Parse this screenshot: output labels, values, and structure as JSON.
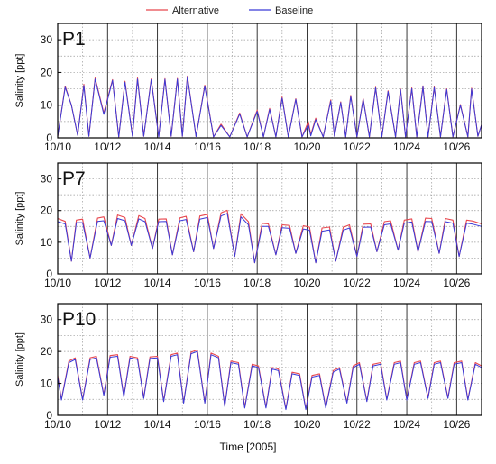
{
  "legend": {
    "alternative": "Alternative",
    "baseline": "Baseline"
  },
  "xlabel": "Time [2005]",
  "colors": {
    "alternative": "#e8474e",
    "baseline": "#3a3ad8",
    "grid": "#9a9a9a",
    "frame": "#000000"
  },
  "chart_data": [
    {
      "type": "line",
      "label": "P1",
      "ylabel": "Salinity [ppt]",
      "xlim": [
        10,
        27
      ],
      "ylim": [
        0,
        35
      ],
      "x_ticks": [
        "10/10",
        "10/12",
        "10/14",
        "10/16",
        "10/18",
        "10/20",
        "10/22",
        "10/24",
        "10/26"
      ],
      "y_ticks": [
        0,
        10,
        20,
        30
      ],
      "grid": true,
      "x_unit": "day of October 2005",
      "series": [
        {
          "name": "Alternative",
          "x": [
            10.0,
            10.3,
            10.55,
            10.8,
            11.05,
            11.25,
            11.5,
            11.85,
            12.2,
            12.45,
            12.7,
            13.0,
            13.2,
            13.45,
            13.75,
            14.05,
            14.3,
            14.55,
            14.8,
            15.0,
            15.2,
            15.55,
            15.9,
            16.25,
            16.55,
            16.9,
            17.3,
            17.6,
            18.0,
            18.25,
            18.5,
            18.75,
            19.0,
            19.25,
            19.55,
            19.8,
            20.05,
            20.15,
            20.35,
            20.65,
            20.95,
            21.1,
            21.35,
            21.55,
            21.75,
            22.0,
            22.25,
            22.5,
            22.75,
            23.0,
            23.25,
            23.55,
            23.75,
            23.95,
            24.2,
            24.4,
            24.65,
            24.85,
            25.1,
            25.35,
            25.6,
            25.85,
            26.15,
            26.45,
            26.6,
            26.85,
            27.0
          ],
          "y": [
            0.5,
            15.8,
            10.0,
            0.8,
            16.4,
            0.5,
            18.3,
            7.6,
            17.8,
            0.3,
            17.3,
            0.6,
            18.3,
            0.5,
            18.0,
            0.4,
            18.1,
            0.5,
            18.2,
            0.5,
            18.9,
            0.4,
            16.1,
            0.3,
            4.2,
            0.3,
            7.6,
            0.3,
            8.5,
            0.3,
            9.0,
            0.3,
            12.5,
            0.3,
            12.0,
            0.3,
            5.0,
            1.0,
            6.0,
            0.3,
            11.6,
            0.5,
            11.0,
            0.3,
            13.0,
            0.3,
            12.0,
            0.3,
            15.5,
            0.3,
            14.4,
            0.3,
            15.0,
            0.3,
            15.3,
            0.3,
            15.9,
            0.3,
            15.6,
            0.3,
            15.0,
            0.3,
            10.2,
            0.3,
            15.2,
            0.5,
            4.0
          ]
        },
        {
          "name": "Baseline",
          "x": [
            10.0,
            10.3,
            10.55,
            10.8,
            11.05,
            11.25,
            11.5,
            11.85,
            12.2,
            12.45,
            12.7,
            13.0,
            13.2,
            13.45,
            13.75,
            14.05,
            14.3,
            14.55,
            14.8,
            15.0,
            15.2,
            15.55,
            15.9,
            16.25,
            16.55,
            16.9,
            17.3,
            17.6,
            18.0,
            18.25,
            18.5,
            18.75,
            19.0,
            19.25,
            19.55,
            19.8,
            20.05,
            20.15,
            20.35,
            20.65,
            20.95,
            21.1,
            21.35,
            21.55,
            21.75,
            22.0,
            22.25,
            22.5,
            22.75,
            23.0,
            23.25,
            23.55,
            23.75,
            23.95,
            24.2,
            24.4,
            24.65,
            24.85,
            25.1,
            25.35,
            25.6,
            25.85,
            26.15,
            26.45,
            26.6,
            26.85,
            27.0
          ],
          "y": [
            0.5,
            15.5,
            10.0,
            0.8,
            16.0,
            0.5,
            18.0,
            7.2,
            17.6,
            0.3,
            17.0,
            0.5,
            18.0,
            0.5,
            17.8,
            0.3,
            17.9,
            0.5,
            18.0,
            0.5,
            18.7,
            0.4,
            15.8,
            0.3,
            3.8,
            0.3,
            7.3,
            0.3,
            8.1,
            0.3,
            8.7,
            0.3,
            12.2,
            0.3,
            11.8,
            0.3,
            4.0,
            0.6,
            5.6,
            0.3,
            11.3,
            0.5,
            10.8,
            0.3,
            12.7,
            0.3,
            11.8,
            0.3,
            15.3,
            0.3,
            14.2,
            0.3,
            14.8,
            0.3,
            15.1,
            0.3,
            15.6,
            0.3,
            15.4,
            0.3,
            14.8,
            0.3,
            10.0,
            0.3,
            15.0,
            0.5,
            4.0
          ]
        }
      ]
    },
    {
      "type": "line",
      "label": "P7",
      "ylabel": "Salinity [ppt]",
      "xlim": [
        10,
        27
      ],
      "ylim": [
        0,
        35
      ],
      "x_ticks": [
        "10/10",
        "10/12",
        "10/14",
        "10/16",
        "10/18",
        "10/20",
        "10/22",
        "10/24",
        "10/26"
      ],
      "y_ticks": [
        0,
        10,
        20,
        30
      ],
      "grid": true,
      "x_unit": "day of October 2005",
      "series": [
        {
          "name": "Alternative",
          "x": [
            10.0,
            10.3,
            10.55,
            10.75,
            11.0,
            11.3,
            11.6,
            11.85,
            12.15,
            12.4,
            12.7,
            12.95,
            13.25,
            13.5,
            13.8,
            14.05,
            14.35,
            14.6,
            14.9,
            15.15,
            15.45,
            15.7,
            16.0,
            16.25,
            16.55,
            16.8,
            17.1,
            17.35,
            17.65,
            17.9,
            18.2,
            18.45,
            18.75,
            19.0,
            19.3,
            19.55,
            19.85,
            20.1,
            20.35,
            20.6,
            20.9,
            21.15,
            21.45,
            21.7,
            22.0,
            22.25,
            22.55,
            22.8,
            23.1,
            23.35,
            23.65,
            23.9,
            24.2,
            24.45,
            24.75,
            25.0,
            25.3,
            25.55,
            25.85,
            26.1,
            26.4,
            26.65,
            27.0
          ],
          "y": [
            17.5,
            16.6,
            4.0,
            17.0,
            17.3,
            5.0,
            17.6,
            18.0,
            9.0,
            18.6,
            17.8,
            9.0,
            18.4,
            17.5,
            8.0,
            17.3,
            17.4,
            6.0,
            17.7,
            18.2,
            7.0,
            18.3,
            18.8,
            8.0,
            19.3,
            20.1,
            5.5,
            19.0,
            16.5,
            3.5,
            16.0,
            15.8,
            6.0,
            15.5,
            15.3,
            6.5,
            15.2,
            14.8,
            3.5,
            14.5,
            14.8,
            4.0,
            14.7,
            15.5,
            5.5,
            15.7,
            15.8,
            7.0,
            16.5,
            16.8,
            7.5,
            17.0,
            17.4,
            7.0,
            17.6,
            17.5,
            6.5,
            17.5,
            17.0,
            5.5,
            17.0,
            16.7,
            15.8
          ]
        },
        {
          "name": "Baseline",
          "x": [
            10.0,
            10.3,
            10.55,
            10.75,
            11.0,
            11.3,
            11.6,
            11.85,
            12.15,
            12.4,
            12.7,
            12.95,
            13.25,
            13.5,
            13.8,
            14.05,
            14.35,
            14.6,
            14.9,
            15.15,
            15.45,
            15.7,
            16.0,
            16.25,
            16.55,
            16.8,
            17.1,
            17.35,
            17.65,
            17.9,
            18.2,
            18.45,
            18.75,
            19.0,
            19.3,
            19.55,
            19.85,
            20.1,
            20.35,
            20.6,
            20.9,
            21.15,
            21.45,
            21.7,
            22.0,
            22.25,
            22.55,
            22.8,
            23.1,
            23.35,
            23.65,
            23.9,
            24.2,
            24.45,
            24.75,
            25.0,
            25.3,
            25.55,
            25.85,
            26.1,
            26.4,
            26.65,
            27.0
          ],
          "y": [
            16.5,
            15.8,
            4.0,
            16.2,
            16.2,
            5.0,
            16.6,
            16.8,
            9.0,
            17.5,
            16.8,
            9.0,
            17.4,
            16.5,
            8.0,
            16.5,
            16.6,
            6.0,
            16.8,
            17.2,
            7.0,
            17.3,
            17.8,
            8.0,
            18.3,
            19.1,
            5.5,
            18.0,
            15.5,
            3.5,
            15.0,
            15.0,
            6.0,
            14.6,
            14.4,
            6.5,
            14.2,
            13.8,
            3.5,
            13.5,
            13.9,
            4.0,
            13.8,
            14.5,
            5.5,
            14.7,
            14.8,
            7.0,
            15.5,
            15.8,
            7.5,
            16.0,
            16.4,
            7.0,
            16.6,
            16.5,
            6.5,
            16.5,
            16.0,
            5.5,
            16.0,
            15.7,
            15.0
          ]
        }
      ]
    },
    {
      "type": "line",
      "label": "P10",
      "ylabel": "Salinity [ppt]",
      "xlim": [
        10,
        27
      ],
      "ylim": [
        0,
        35
      ],
      "x_ticks": [
        "10/10",
        "10/12",
        "10/14",
        "10/16",
        "10/18",
        "10/20",
        "10/22",
        "10/24",
        "10/26"
      ],
      "y_ticks": [
        0,
        10,
        20,
        30
      ],
      "grid": true,
      "x_unit": "day of October 2005",
      "series": [
        {
          "name": "Alternative",
          "x": [
            10.0,
            10.15,
            10.45,
            10.7,
            11.0,
            11.3,
            11.55,
            11.85,
            12.1,
            12.4,
            12.65,
            12.9,
            13.2,
            13.45,
            13.7,
            14.0,
            14.25,
            14.55,
            14.8,
            15.05,
            15.35,
            15.6,
            15.9,
            16.15,
            16.45,
            16.7,
            16.95,
            17.25,
            17.5,
            17.8,
            18.05,
            18.35,
            18.6,
            18.85,
            19.15,
            19.4,
            19.7,
            19.95,
            20.2,
            20.5,
            20.75,
            21.05,
            21.3,
            21.6,
            21.85,
            22.1,
            22.4,
            22.65,
            22.95,
            23.2,
            23.5,
            23.75,
            24.0,
            24.3,
            24.55,
            24.85,
            25.1,
            25.35,
            25.65,
            25.9,
            26.2,
            26.45,
            26.75,
            27.0
          ],
          "y": [
            12.5,
            5.0,
            17.0,
            18.0,
            5.0,
            18.0,
            18.5,
            6.5,
            18.7,
            19.0,
            6.0,
            18.5,
            18.0,
            5.5,
            18.3,
            18.5,
            4.5,
            19.0,
            19.5,
            4.0,
            19.8,
            20.5,
            4.0,
            19.5,
            18.5,
            3.0,
            17.0,
            16.5,
            2.5,
            16.0,
            15.5,
            2.5,
            15.0,
            14.5,
            2.0,
            13.5,
            13.0,
            2.0,
            12.5,
            13.0,
            2.5,
            14.0,
            15.0,
            4.0,
            15.5,
            16.5,
            4.5,
            16.0,
            16.5,
            5.0,
            16.5,
            17.0,
            5.0,
            16.5,
            17.0,
            5.5,
            16.5,
            17.0,
            5.5,
            16.5,
            17.0,
            5.0,
            16.5,
            15.5
          ]
        },
        {
          "name": "Baseline",
          "x": [
            10.0,
            10.15,
            10.45,
            10.7,
            11.0,
            11.3,
            11.55,
            11.85,
            12.1,
            12.4,
            12.65,
            12.9,
            13.2,
            13.45,
            13.7,
            14.0,
            14.25,
            14.55,
            14.8,
            15.05,
            15.35,
            15.6,
            15.9,
            16.15,
            16.45,
            16.7,
            16.95,
            17.25,
            17.5,
            17.8,
            18.05,
            18.35,
            18.6,
            18.85,
            19.15,
            19.4,
            19.7,
            19.95,
            20.2,
            20.5,
            20.75,
            21.05,
            21.3,
            21.6,
            21.85,
            22.1,
            22.4,
            22.65,
            22.95,
            23.2,
            23.5,
            23.75,
            24.0,
            24.3,
            24.55,
            24.85,
            25.1,
            25.35,
            25.65,
            25.9,
            26.2,
            26.45,
            26.75,
            27.0
          ],
          "y": [
            12.0,
            4.8,
            16.5,
            17.5,
            4.8,
            17.5,
            18.0,
            6.2,
            18.2,
            18.5,
            5.8,
            18.0,
            17.5,
            5.3,
            17.8,
            18.0,
            4.3,
            18.5,
            19.0,
            3.8,
            19.3,
            20.0,
            3.8,
            19.0,
            18.0,
            2.8,
            16.5,
            16.0,
            2.3,
            15.5,
            15.0,
            2.3,
            14.5,
            14.0,
            1.8,
            13.0,
            12.5,
            1.8,
            12.0,
            12.5,
            2.3,
            13.5,
            14.5,
            3.8,
            15.0,
            16.0,
            4.3,
            15.5,
            16.0,
            4.8,
            16.0,
            16.5,
            4.8,
            16.0,
            16.5,
            5.3,
            16.0,
            16.5,
            5.3,
            16.0,
            16.5,
            4.8,
            16.0,
            15.0
          ]
        }
      ]
    }
  ]
}
